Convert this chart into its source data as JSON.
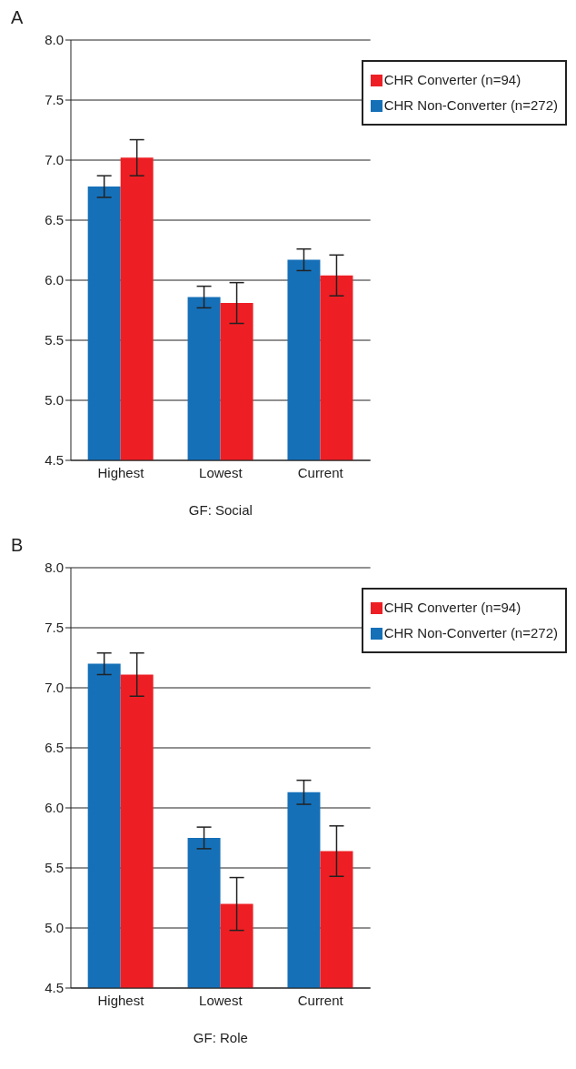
{
  "chart_data": [
    {
      "type": "bar",
      "title": "A",
      "xlabel": "GF: Social",
      "categories": [
        "Highest",
        "Lowest",
        "Current"
      ],
      "series": [
        {
          "name": "CHR Non-Converter (n=272)",
          "color": "#1570b8",
          "values": [
            6.78,
            5.86,
            6.17
          ],
          "errors": [
            0.09,
            0.09,
            0.09
          ]
        },
        {
          "name": "CHR Converter (n=94)",
          "color": "#ed1f24",
          "values": [
            7.02,
            5.81,
            6.04
          ],
          "errors": [
            0.15,
            0.17,
            0.17
          ]
        }
      ],
      "ylim": [
        4.5,
        8.0
      ],
      "yticks": [
        4.5,
        {
          "value": 5,
          "label": "5.0"
        },
        5.5,
        {
          "value": 6,
          "label": "6.0"
        },
        6.5,
        {
          "value": 7,
          "label": "7.0"
        },
        7.5,
        {
          "value": 8,
          "label": "8.0"
        }
      ],
      "grid": "y",
      "legend": "top right"
    },
    {
      "type": "bar",
      "title": "B",
      "xlabel": "GF: Role",
      "categories": [
        "Highest",
        "Lowest",
        "Current"
      ],
      "series": [
        {
          "name": "CHR Non-Converter (n=272)",
          "color": "#1570b8",
          "values": [
            7.2,
            5.75,
            6.13
          ],
          "errors": [
            0.09,
            0.09,
            0.1
          ]
        },
        {
          "name": "CHR Converter (n=94)",
          "color": "#ed1f24",
          "values": [
            7.11,
            5.2,
            5.64
          ],
          "errors": [
            0.18,
            0.22,
            0.21
          ]
        }
      ],
      "ylim": [
        4.5,
        8.0
      ],
      "yticks": [
        4.5,
        {
          "value": 5,
          "label": "5.0"
        },
        5.5,
        {
          "value": 6,
          "label": "6.0"
        },
        6.5,
        {
          "value": 7,
          "label": "7.0"
        },
        7.5,
        {
          "value": 8,
          "label": "8.0"
        }
      ],
      "grid": "y",
      "legend": "top right"
    }
  ]
}
